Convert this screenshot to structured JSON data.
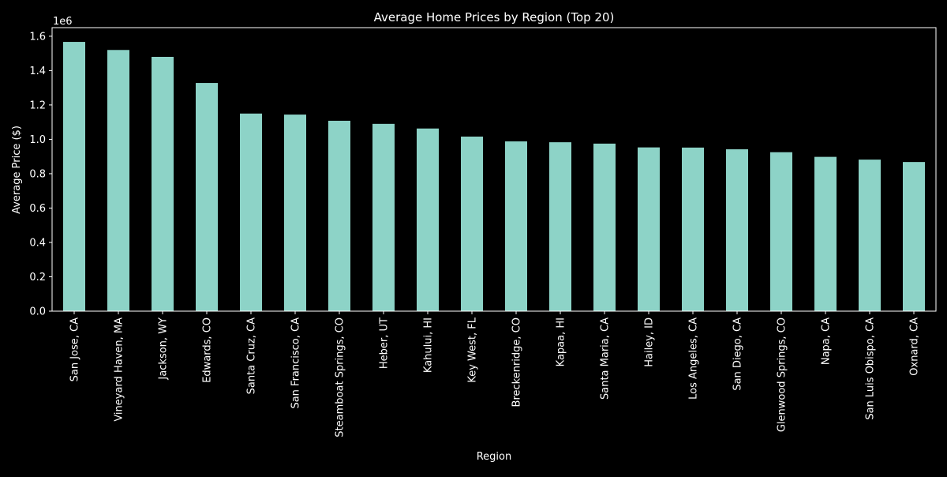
{
  "chart_data": {
    "type": "bar",
    "title": "Average Home Prices by Region (Top 20)",
    "xlabel": "Region",
    "ylabel": "Average Price ($)",
    "y_scale_label": "1e6",
    "ylim": [
      0,
      1.65
    ],
    "yticks": [
      0.0,
      0.2,
      0.4,
      0.6,
      0.8,
      1.0,
      1.2,
      1.4,
      1.6
    ],
    "ytick_labels": [
      "0.0",
      "0.2",
      "0.4",
      "0.6",
      "0.8",
      "1.0",
      "1.2",
      "1.4",
      "1.6"
    ],
    "grid": false,
    "legend": "none",
    "colors": {
      "background": "#000000",
      "bar": "#8dd3c7",
      "text": "#ffffff",
      "axis": "#ffffff"
    },
    "categories": [
      "San Jose, CA",
      "Vineyard Haven, MA",
      "Jackson, WY",
      "Edwards, CO",
      "Santa Cruz, CA",
      "San Francisco, CA",
      "Steamboat Springs, CO",
      "Heber, UT",
      "Kahului, HI",
      "Key West, FL",
      "Breckenridge, CO",
      "Kapaa, HI",
      "Santa Maria, CA",
      "Hailey, ID",
      "Los Angeles, CA",
      "San Diego, CA",
      "Glenwood Springs, CO",
      "Napa, CA",
      "San Luis Obispo, CA",
      "Oxnard, CA"
    ],
    "values": [
      1.567,
      1.52,
      1.48,
      1.328,
      1.15,
      1.144,
      1.108,
      1.09,
      1.063,
      1.016,
      0.988,
      0.983,
      0.975,
      0.953,
      0.952,
      0.942,
      0.925,
      0.898,
      0.882,
      0.868
    ]
  }
}
